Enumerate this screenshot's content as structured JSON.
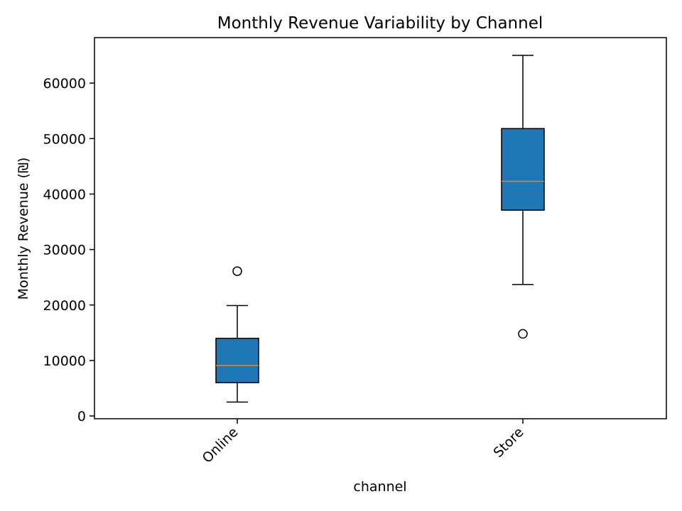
{
  "chart_data": {
    "type": "box",
    "title": "Monthly Revenue Variability by Channel",
    "xlabel": "channel",
    "ylabel": "Monthly Revenue (₪)",
    "categories": [
      "Online",
      "Store"
    ],
    "ylim": [
      -500,
      68200
    ],
    "yticks": [
      0,
      10000,
      20000,
      30000,
      40000,
      50000,
      60000
    ],
    "grid": false,
    "colors": {
      "box": "#1f77b4",
      "median": "#ff7f0e",
      "outline": "#000000"
    },
    "boxes": [
      {
        "category": "Online",
        "whisker_low": 2500,
        "q1": 6000,
        "median": 9100,
        "q3": 14000,
        "whisker_high": 19900,
        "outliers": [
          26100
        ]
      },
      {
        "category": "Store",
        "whisker_low": 23700,
        "q1": 37100,
        "median": 42300,
        "q3": 51800,
        "whisker_high": 65000,
        "outliers": [
          14800
        ]
      }
    ]
  }
}
